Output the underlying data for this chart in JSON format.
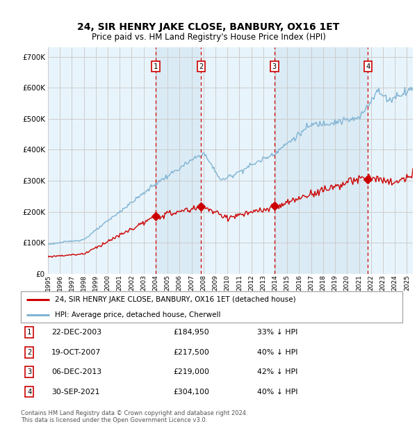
{
  "title": "24, SIR HENRY JAKE CLOSE, BANBURY, OX16 1ET",
  "subtitle": "Price paid vs. HM Land Registry's House Price Index (HPI)",
  "legend_line1": "24, SIR HENRY JAKE CLOSE, BANBURY, OX16 1ET (detached house)",
  "legend_line2": "HPI: Average price, detached house, Cherwell",
  "footer1": "Contains HM Land Registry data © Crown copyright and database right 2024.",
  "footer2": "This data is licensed under the Open Government Licence v3.0.",
  "transactions": [
    {
      "num": 1,
      "date": "22-DEC-2003",
      "price": "£184,950",
      "pct": "33% ↓ HPI",
      "year": 2004.0,
      "price_val": 184950
    },
    {
      "num": 2,
      "date": "19-OCT-2007",
      "price": "£217,500",
      "pct": "40% ↓ HPI",
      "year": 2007.8,
      "price_val": 217500
    },
    {
      "num": 3,
      "date": "06-DEC-2013",
      "price": "£219,000",
      "pct": "42% ↓ HPI",
      "year": 2013.93,
      "price_val": 219000
    },
    {
      "num": 4,
      "date": "30-SEP-2021",
      "price": "£304,100",
      "pct": "40% ↓ HPI",
      "year": 2021.75,
      "price_val": 304100
    }
  ],
  "red_color": "#cc0000",
  "blue_color": "#7fb3d3",
  "shade_color": "#d8eaf5",
  "vline_color": "#cc0000",
  "bg_color": "#e8f4fb",
  "grid_color": "#cccccc",
  "ylim": [
    0,
    730000
  ],
  "xlim_start": 1995.0,
  "xlim_end": 2025.5,
  "title_fontsize": 10,
  "subtitle_fontsize": 8.5
}
